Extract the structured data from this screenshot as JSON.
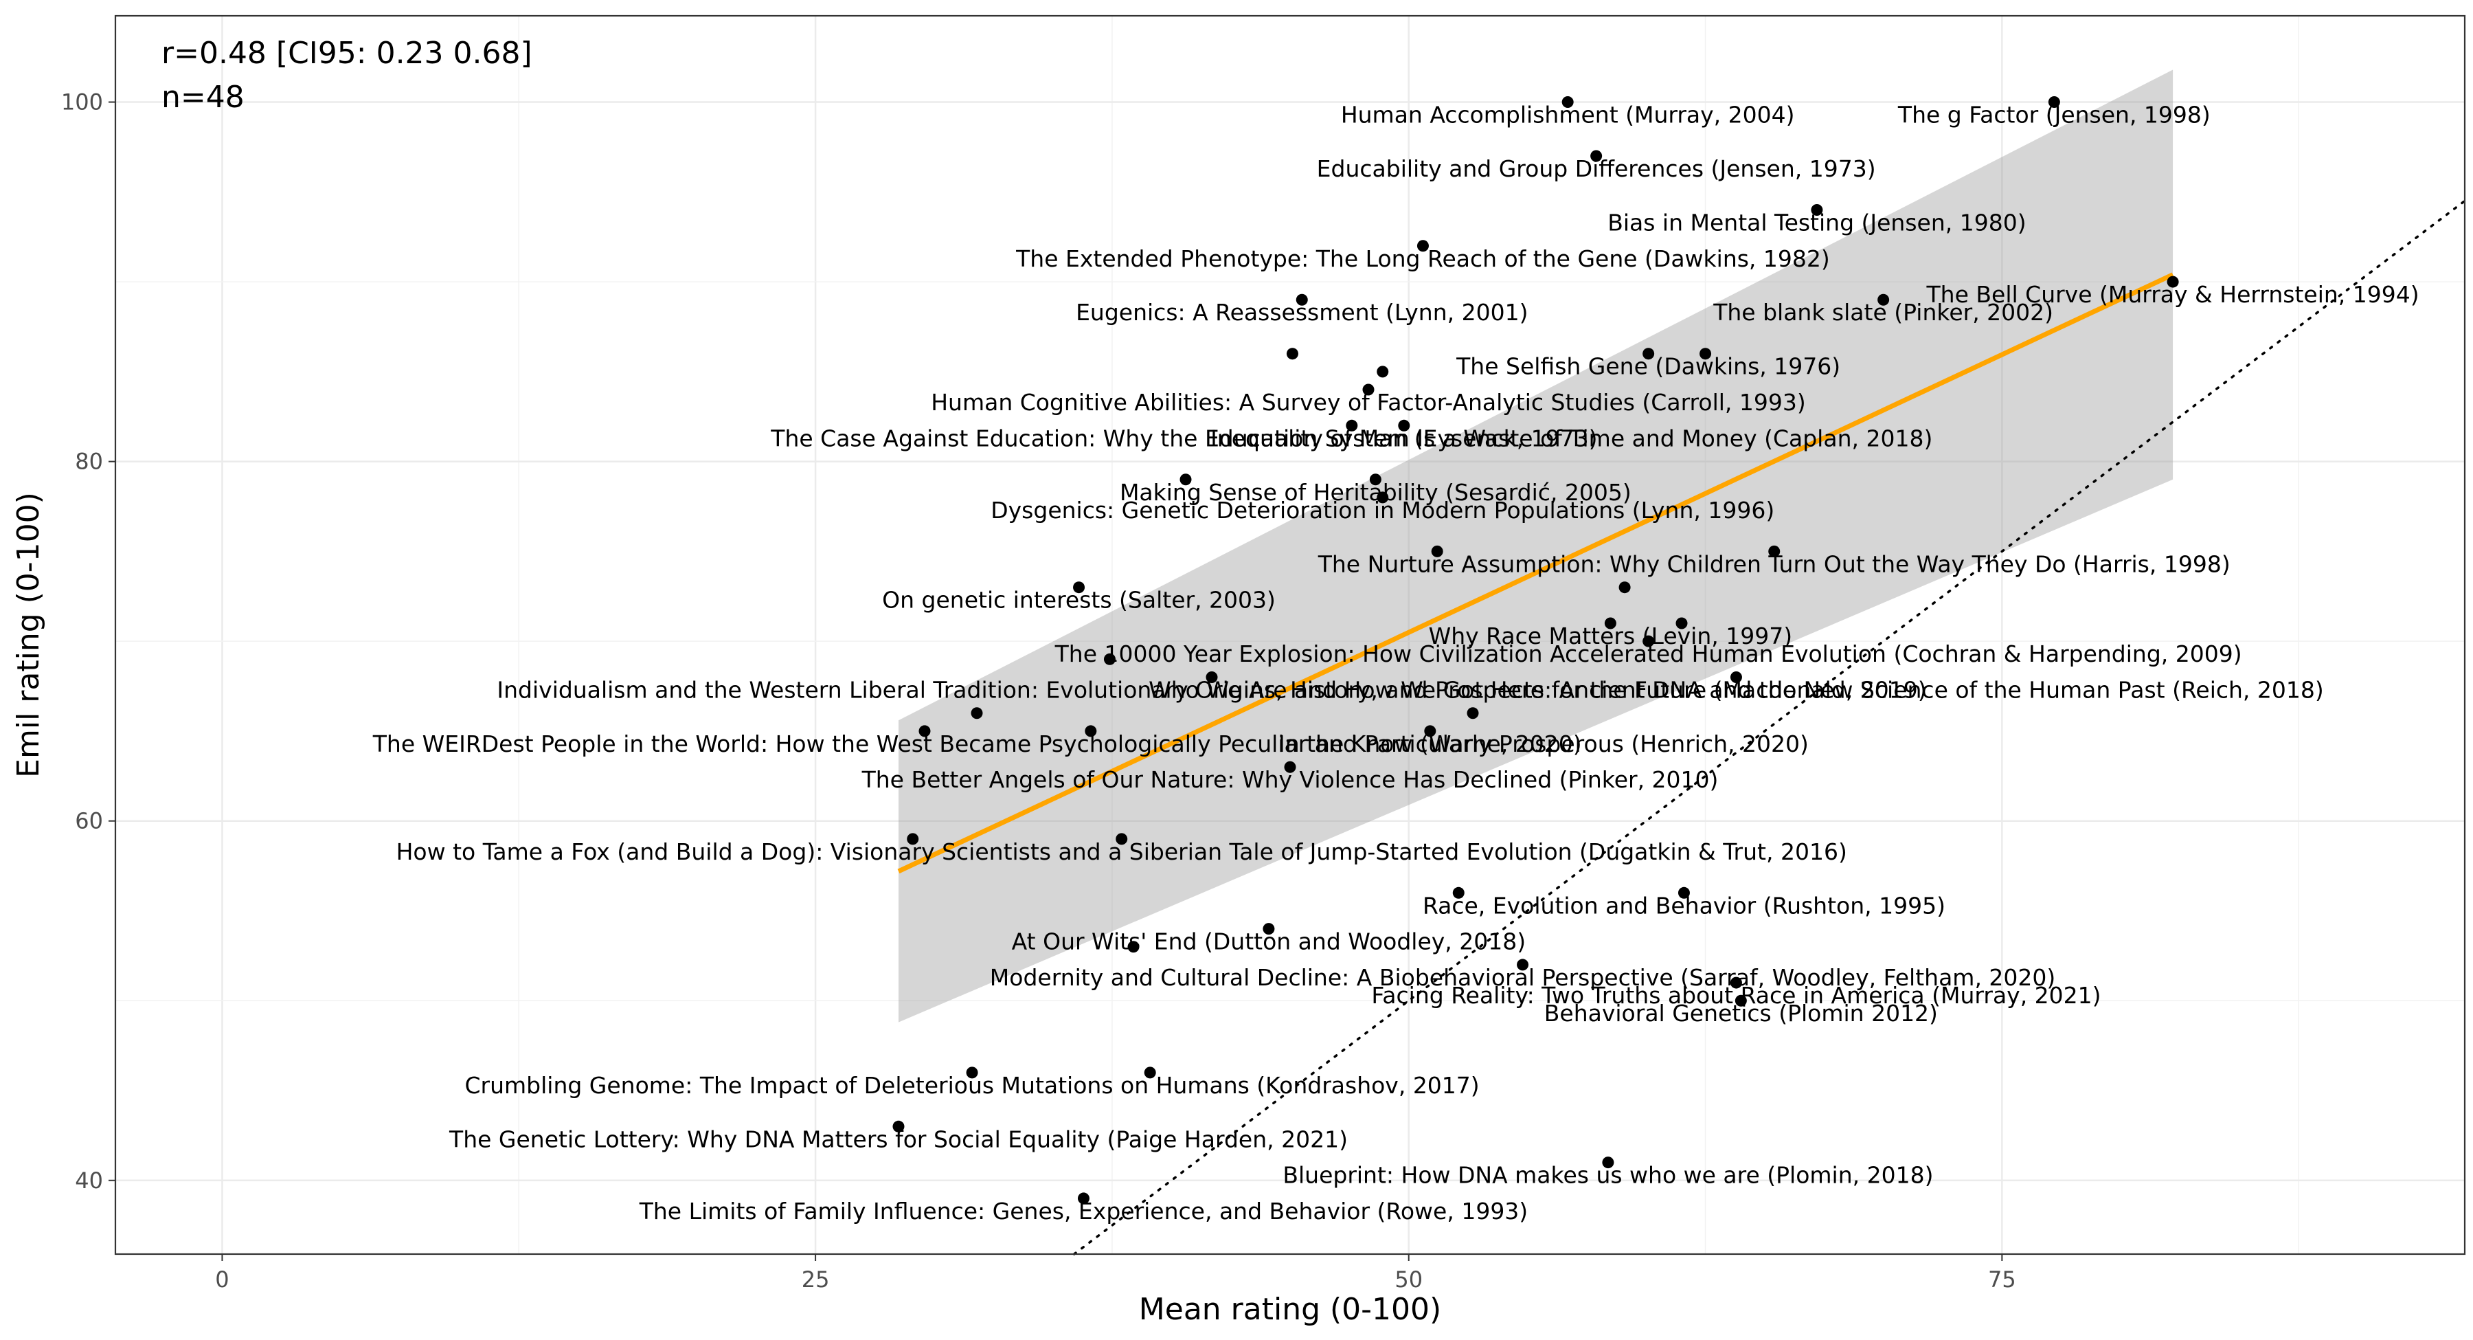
{
  "chart_data": {
    "type": "scatter",
    "xlabel": "Mean rating (0-100)",
    "ylabel": "Emil rating (0-100)",
    "xlim": [
      -4.5,
      94.5
    ],
    "ylim": [
      35.9,
      104.8
    ],
    "x_ticks": [
      0,
      25,
      50,
      75
    ],
    "y_ticks": [
      40,
      60,
      80,
      100
    ],
    "grid": true,
    "annotation": {
      "stat_line": "r=0.48 [CI95: 0.23 0.68]",
      "n_line": "n=48"
    },
    "identity_line": {
      "style": "dotted",
      "slope": 1,
      "intercept": 0
    },
    "regression": {
      "color": "#ffa500",
      "x": [
        28.5,
        82.2
      ],
      "y": [
        57.2,
        90.4
      ],
      "ci_lower": [
        48.8,
        79.0
      ],
      "ci_upper": [
        65.6,
        101.8
      ]
    },
    "points": [
      {
        "x": 56.7,
        "y": 100,
        "label": "Human Accomplishment (Murray, 2004)"
      },
      {
        "x": 77.2,
        "y": 100,
        "label": "The g Factor (Jensen, 1998)"
      },
      {
        "x": 57.9,
        "y": 97,
        "label": "Educability and Group Differences (Jensen, 1973)"
      },
      {
        "x": 67.2,
        "y": 94,
        "label": "Bias in Mental Testing (Jensen, 1980)"
      },
      {
        "x": 50.6,
        "y": 92,
        "label": "The Extended Phenotype: The Long Reach of the Gene (Dawkins, 1982)"
      },
      {
        "x": 45.5,
        "y": 89,
        "label": "Eugenics: A Reassessment (Lynn, 2001)"
      },
      {
        "x": 70.0,
        "y": 89,
        "label": "The blank slate (Pinker, 2002)"
      },
      {
        "x": 82.2,
        "y": 90,
        "label": "The Bell Curve (Murray & Herrnstein, 1994)"
      },
      {
        "x": 60.1,
        "y": 86,
        "label": "The Selfish Gene (Dawkins, 1976)"
      },
      {
        "x": 62.5,
        "y": 86,
        "label": ""
      },
      {
        "x": 45.1,
        "y": 86,
        "label": ""
      },
      {
        "x": 48.9,
        "y": 85,
        "label": ""
      },
      {
        "x": 48.3,
        "y": 84,
        "label": "Human Cognitive Abilities: A Survey of Factor-Analytic Studies (Carroll, 1993)"
      },
      {
        "x": 47.6,
        "y": 82,
        "label": "The Case Against Education: Why the Education System Is a Waste of Time and Money (Caplan, 2018)"
      },
      {
        "x": 49.8,
        "y": 82,
        "label": "Inequality of Man (Eysenck, 1973)"
      },
      {
        "x": 40.6,
        "y": 79,
        "label": ""
      },
      {
        "x": 48.6,
        "y": 79,
        "label": "Making Sense of Heritability (Sesardić, 2005)"
      },
      {
        "x": 48.9,
        "y": 78,
        "label": "Dysgenics: Genetic Deterioration in Modern Populations (Lynn, 1996)"
      },
      {
        "x": 51.2,
        "y": 75,
        "label": ""
      },
      {
        "x": 65.4,
        "y": 75,
        "label": "The Nurture Assumption: Why Children Turn Out the Way They Do (Harris, 1998)"
      },
      {
        "x": 59.1,
        "y": 73,
        "label": ""
      },
      {
        "x": 36.1,
        "y": 73,
        "label": "On genetic interests (Salter, 2003)"
      },
      {
        "x": 58.5,
        "y": 71,
        "label": "Why Race Matters (Levin, 1997)"
      },
      {
        "x": 61.5,
        "y": 71,
        "label": ""
      },
      {
        "x": 60.1,
        "y": 70,
        "label": "The 10000 Year Explosion: How Civilization Accelerated Human Evolution (Cochran & Harpending, 2009)"
      },
      {
        "x": 37.4,
        "y": 69,
        "label": ""
      },
      {
        "x": 41.7,
        "y": 68,
        "label": "Individualism and the Western Liberal Tradition: Evolutionary Origins, History, and Prospects for the Future (Macdonald, 2019)"
      },
      {
        "x": 63.8,
        "y": 68,
        "label": "Who We Are and How We Got Here: Ancient DNA and the New Science of the Human Past (Reich, 2018)"
      },
      {
        "x": 31.8,
        "y": 66,
        "label": ""
      },
      {
        "x": 52.7,
        "y": 66,
        "label": ""
      },
      {
        "x": 29.6,
        "y": 65,
        "label": ""
      },
      {
        "x": 36.6,
        "y": 65,
        "label": "The WEIRDest People in the World: How the West Became Psychologically Peculiar and Particularly Prosperous (Henrich, 2020)"
      },
      {
        "x": 50.9,
        "y": 65,
        "label": "In the Know (Warne, 2020)"
      },
      {
        "x": 45.0,
        "y": 63,
        "label": "The Better Angels of Our Nature: Why Violence Has Declined (Pinker, 2010)"
      },
      {
        "x": 29.1,
        "y": 59,
        "label": ""
      },
      {
        "x": 37.9,
        "y": 59,
        "label": "How to Tame a Fox (and Build a Dog): Visionary Scientists and a Siberian Tale of Jump-Started Evolution (Dugatkin & Trut, 2016)"
      },
      {
        "x": 52.1,
        "y": 56,
        "label": ""
      },
      {
        "x": 61.6,
        "y": 56,
        "label": "Race, Evolution and Behavior (Rushton, 1995)"
      },
      {
        "x": 44.1,
        "y": 54,
        "label": "At Our Wits' End (Dutton and Woodley, 2018)"
      },
      {
        "x": 38.4,
        "y": 53,
        "label": ""
      },
      {
        "x": 54.8,
        "y": 52,
        "label": "Modernity and Cultural Decline: A Biobehavioral Perspective (Sarraf, Woodley, Feltham, 2020)"
      },
      {
        "x": 63.8,
        "y": 51,
        "label": "Facing Reality: Two Truths about Race in America (Murray, 2021)"
      },
      {
        "x": 31.6,
        "y": 46,
        "label": "Crumbling Genome: The Impact of Deleterious Mutations on Humans (Kondrashov, 2017)"
      },
      {
        "x": 39.1,
        "y": 46,
        "label": ""
      },
      {
        "x": 28.5,
        "y": 43,
        "label": "The Genetic Lottery: Why DNA Matters for Social Equality (Paige Harden, 2021)"
      },
      {
        "x": 58.4,
        "y": 41,
        "label": "Blueprint: How DNA makes us who we are (Plomin, 2018)"
      },
      {
        "x": 36.3,
        "y": 39,
        "label": "The Limits of Family Influence: Genes, Experience, and Behavior (Rowe, 1993)"
      },
      {
        "x": 64.0,
        "y": 50,
        "label": "Behavioral Genetics (Plomin 2012)"
      }
    ]
  }
}
